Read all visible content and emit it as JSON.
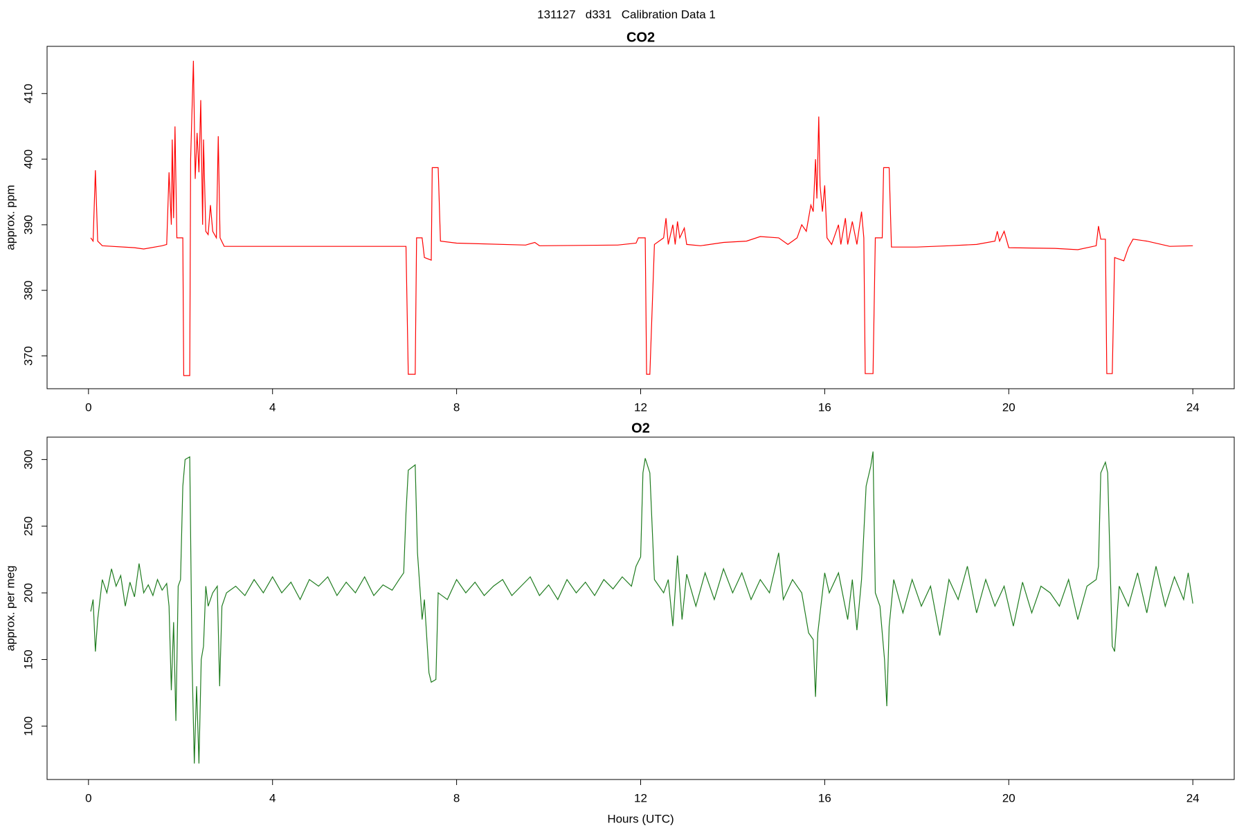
{
  "title": "131127   d331   Calibration Data 1",
  "chart_data": [
    {
      "type": "line",
      "title": "CO2",
      "ylabel": "approx. ppm",
      "color": "#ff0000",
      "xlim": [
        -0.9,
        24.9
      ],
      "xticks": [
        0,
        4,
        8,
        12,
        16,
        20,
        24
      ],
      "ylim": [
        365,
        417.2
      ],
      "yticks": [
        370,
        380,
        390,
        400,
        410
      ],
      "x": [
        0.05,
        0.1,
        0.15,
        0.2,
        0.3,
        1.0,
        1.2,
        1.6,
        1.7,
        1.75,
        1.8,
        1.82,
        1.85,
        1.88,
        1.92,
        2.05,
        2.07,
        2.2,
        2.22,
        2.28,
        2.32,
        2.36,
        2.4,
        2.44,
        2.48,
        2.5,
        2.55,
        2.6,
        2.65,
        2.7,
        2.78,
        2.82,
        2.86,
        2.95,
        4,
        6.5,
        6.9,
        6.95,
        7.1,
        7.13,
        7.25,
        7.3,
        7.45,
        7.47,
        7.6,
        7.65,
        8,
        9.5,
        9.7,
        9.8,
        11.5,
        11.9,
        11.95,
        12.1,
        12.13,
        12.2,
        12.3,
        12.4,
        12.5,
        12.55,
        12.6,
        12.7,
        12.75,
        12.8,
        12.85,
        12.95,
        13.0,
        13.3,
        13.8,
        14.3,
        14.6,
        15,
        15.2,
        15.4,
        15.5,
        15.6,
        15.7,
        15.75,
        15.8,
        15.83,
        15.87,
        15.9,
        15.95,
        16.0,
        16.05,
        16.15,
        16.3,
        16.35,
        16.45,
        16.5,
        16.6,
        16.7,
        16.8,
        16.85,
        16.88,
        17.05,
        17.1,
        17.25,
        17.28,
        17.4,
        17.45,
        18,
        18.7,
        19.3,
        19.7,
        19.75,
        19.8,
        19.9,
        20,
        21,
        21.5,
        21.9,
        21.95,
        22.0,
        22.1,
        22.13,
        22.25,
        22.3,
        22.5,
        22.6,
        22.7,
        23,
        23.5,
        24
      ],
      "values": [
        388,
        387.5,
        398.3,
        387.5,
        386.8,
        386.5,
        386.3,
        386.8,
        387,
        398,
        390,
        403,
        391,
        405,
        388,
        388,
        367,
        367,
        400,
        415,
        397,
        404,
        398,
        409,
        390,
        403,
        389,
        388.5,
        393,
        389,
        388,
        403.5,
        388,
        386.7,
        386.7,
        386.7,
        386.7,
        367.2,
        367.2,
        388,
        388,
        385,
        384.6,
        398.7,
        398.7,
        387.5,
        387.2,
        386.9,
        387.3,
        386.8,
        386.9,
        387.2,
        388,
        388,
        367.2,
        367.2,
        387,
        387.5,
        388,
        391,
        387,
        390,
        387,
        390.5,
        388,
        389.5,
        387,
        386.8,
        387.3,
        387.5,
        388.2,
        388,
        387,
        388,
        390,
        389,
        393,
        392,
        400,
        394,
        406.5,
        396,
        392,
        396,
        388,
        387,
        390,
        387,
        391,
        387,
        390.5,
        387,
        392,
        388,
        367.3,
        367.3,
        388,
        388,
        398.7,
        398.7,
        386.6,
        386.6,
        386.8,
        387,
        387.5,
        389,
        387.5,
        389,
        386.5,
        386.4,
        386.2,
        386.8,
        389.8,
        387.8,
        387.8,
        367.3,
        367.3,
        385,
        384.5,
        386.5,
        387.8,
        387.5,
        386.7,
        386.8
      ]
    },
    {
      "type": "line",
      "title": "O2",
      "ylabel": "approx. per meg",
      "xlabel": "Hours (UTC)",
      "color": "#1e7b1e",
      "xlim": [
        -0.9,
        24.9
      ],
      "xticks": [
        0,
        4,
        8,
        12,
        16,
        20,
        24
      ],
      "ylim": [
        60,
        316.8
      ],
      "yticks": [
        100,
        150,
        200,
        250,
        300
      ],
      "x": [
        0.05,
        0.1,
        0.15,
        0.2,
        0.3,
        0.4,
        0.5,
        0.6,
        0.7,
        0.8,
        0.9,
        1.0,
        1.1,
        1.2,
        1.3,
        1.4,
        1.5,
        1.6,
        1.7,
        1.75,
        1.8,
        1.85,
        1.9,
        1.95,
        2.0,
        2.05,
        2.1,
        2.2,
        2.25,
        2.3,
        2.35,
        2.4,
        2.45,
        2.5,
        2.55,
        2.6,
        2.7,
        2.8,
        2.85,
        2.9,
        3.0,
        3.2,
        3.4,
        3.6,
        3.8,
        4.0,
        4.2,
        4.4,
        4.6,
        4.8,
        5.0,
        5.2,
        5.4,
        5.6,
        5.8,
        6.0,
        6.2,
        6.4,
        6.6,
        6.75,
        6.85,
        6.9,
        6.95,
        7.1,
        7.15,
        7.25,
        7.3,
        7.4,
        7.45,
        7.55,
        7.6,
        7.8,
        8.0,
        8.2,
        8.4,
        8.6,
        8.8,
        9.0,
        9.2,
        9.4,
        9.6,
        9.8,
        10.0,
        10.2,
        10.4,
        10.6,
        10.8,
        11.0,
        11.2,
        11.4,
        11.6,
        11.8,
        11.9,
        12.0,
        12.05,
        12.1,
        12.2,
        12.3,
        12.5,
        12.6,
        12.7,
        12.8,
        12.9,
        13.0,
        13.2,
        13.4,
        13.6,
        13.8,
        14.0,
        14.2,
        14.4,
        14.6,
        14.8,
        15.0,
        15.1,
        15.3,
        15.5,
        15.65,
        15.75,
        15.8,
        15.85,
        16.0,
        16.1,
        16.3,
        16.5,
        16.6,
        16.7,
        16.8,
        16.9,
        17.0,
        17.05,
        17.1,
        17.2,
        17.3,
        17.35,
        17.4,
        17.5,
        17.7,
        17.9,
        18.1,
        18.3,
        18.5,
        18.7,
        18.9,
        19.1,
        19.3,
        19.5,
        19.7,
        19.9,
        20.1,
        20.3,
        20.5,
        20.7,
        20.9,
        21.1,
        21.3,
        21.5,
        21.7,
        21.9,
        21.95,
        22.0,
        22.1,
        22.15,
        22.25,
        22.3,
        22.4,
        22.6,
        22.8,
        23.0,
        23.2,
        23.4,
        23.6,
        23.8,
        23.9,
        24.0
      ],
      "values": [
        186,
        195,
        156,
        180,
        210,
        200,
        218,
        205,
        213,
        190,
        208,
        197,
        222,
        200,
        206,
        198,
        210,
        202,
        207,
        190,
        127,
        178,
        104,
        205,
        210,
        280,
        300,
        302,
        150,
        72,
        130,
        72,
        150,
        160,
        205,
        190,
        200,
        205,
        130,
        190,
        200,
        205,
        198,
        210,
        200,
        212,
        200,
        208,
        195,
        210,
        205,
        212,
        198,
        208,
        200,
        212,
        198,
        206,
        202,
        210,
        215,
        260,
        292,
        296,
        230,
        180,
        195,
        140,
        133,
        135,
        200,
        195,
        210,
        200,
        208,
        198,
        205,
        210,
        198,
        205,
        212,
        198,
        206,
        195,
        210,
        200,
        208,
        198,
        210,
        203,
        212,
        205,
        220,
        227,
        290,
        301,
        290,
        210,
        200,
        210,
        175,
        228,
        180,
        214,
        190,
        215,
        195,
        218,
        200,
        215,
        195,
        210,
        200,
        230,
        195,
        210,
        200,
        170,
        165,
        122,
        170,
        215,
        200,
        215,
        180,
        210,
        172,
        210,
        280,
        295,
        306,
        200,
        190,
        150,
        115,
        175,
        210,
        185,
        210,
        190,
        205,
        168,
        210,
        195,
        220,
        185,
        210,
        190,
        205,
        175,
        208,
        185,
        205,
        200,
        190,
        210,
        180,
        205,
        210,
        220,
        290,
        298,
        290,
        160,
        156,
        205,
        190,
        215,
        185,
        220,
        190,
        212,
        195,
        215,
        192
      ]
    }
  ]
}
